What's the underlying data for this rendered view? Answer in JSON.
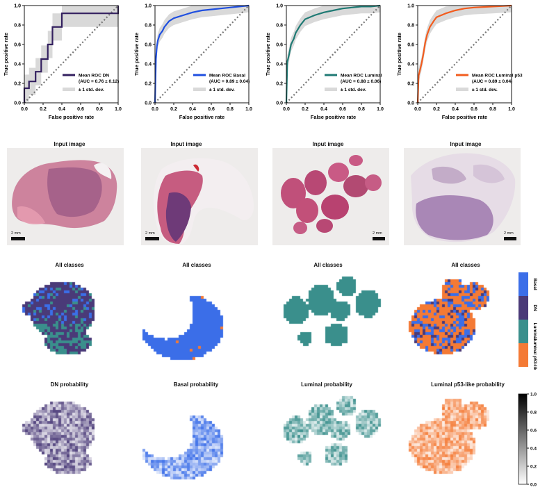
{
  "chart_data": [
    {
      "type": "line",
      "title": "",
      "xlabel": "False positive rate",
      "ylabel": "True positive rate",
      "xlim": [
        0,
        1
      ],
      "ylim": [
        0,
        1
      ],
      "xticks": [
        "0.0",
        "0.2",
        "0.4",
        "0.6",
        "0.8",
        "1.0"
      ],
      "yticks": [
        "0.0",
        "0.2",
        "0.4",
        "0.6",
        "0.8",
        "1.0"
      ],
      "legend_position": "bottom-right",
      "series": [
        {
          "name": "Mean ROC DN",
          "auc": "(AUC = 0.76 ± 0.12)",
          "color": "#33205f",
          "x": [
            0,
            0,
            0.05,
            0.05,
            0.12,
            0.12,
            0.18,
            0.18,
            0.25,
            0.25,
            0.3,
            0.3,
            0.4,
            0.4,
            1.0,
            1.0
          ],
          "y": [
            0,
            0.15,
            0.15,
            0.22,
            0.22,
            0.32,
            0.32,
            0.45,
            0.45,
            0.6,
            0.6,
            0.78,
            0.78,
            0.92,
            0.92,
            1.0
          ]
        },
        {
          "name": "± 1 std. dev.",
          "color": "#d9d9d9",
          "role": "band"
        }
      ]
    },
    {
      "type": "line",
      "title": "",
      "xlabel": "False positive rate",
      "ylabel": "True positive rate",
      "xlim": [
        0,
        1
      ],
      "ylim": [
        0,
        1
      ],
      "xticks": [
        "0.0",
        "0.2",
        "0.4",
        "0.6",
        "0.8",
        "1.0"
      ],
      "yticks": [
        "0.0",
        "0.2",
        "0.4",
        "0.6",
        "0.8",
        "1.0"
      ],
      "legend_position": "bottom-right",
      "series": [
        {
          "name": "Mean ROC Basal",
          "auc": "(AUC = 0.89 ± 0.04)",
          "color": "#1f4fe0",
          "x": [
            0,
            0.01,
            0.02,
            0.03,
            0.05,
            0.08,
            0.1,
            0.15,
            0.2,
            0.3,
            0.4,
            0.5,
            0.6,
            0.7,
            0.8,
            0.9,
            1.0
          ],
          "y": [
            0,
            0.45,
            0.58,
            0.64,
            0.7,
            0.74,
            0.78,
            0.84,
            0.87,
            0.9,
            0.93,
            0.95,
            0.96,
            0.97,
            0.98,
            0.99,
            1.0
          ]
        },
        {
          "name": "± 1 std. dev.",
          "color": "#d9d9d9",
          "role": "band"
        }
      ]
    },
    {
      "type": "line",
      "title": "",
      "xlabel": "False positive rate",
      "ylabel": "True positive rate",
      "xlim": [
        0,
        1
      ],
      "ylim": [
        0,
        1
      ],
      "xticks": [
        "0.0",
        "0.2",
        "0.4",
        "0.6",
        "0.8",
        "1.0"
      ],
      "yticks": [
        "0.0",
        "0.2",
        "0.4",
        "0.6",
        "0.8",
        "1.0"
      ],
      "legend_position": "bottom-right",
      "series": [
        {
          "name": "Mean ROC Luminal",
          "auc": "(AUC = 0.88 ± 0.06)",
          "color": "#1f7a74",
          "x": [
            0,
            0.01,
            0.03,
            0.05,
            0.08,
            0.1,
            0.15,
            0.2,
            0.3,
            0.4,
            0.5,
            0.6,
            0.7,
            0.8,
            0.9,
            1.0
          ],
          "y": [
            0,
            0.42,
            0.5,
            0.6,
            0.66,
            0.72,
            0.8,
            0.86,
            0.9,
            0.93,
            0.95,
            0.97,
            0.98,
            0.99,
            0.99,
            1.0
          ]
        },
        {
          "name": "± 1 std. dev.",
          "color": "#d9d9d9",
          "role": "band"
        }
      ]
    },
    {
      "type": "line",
      "title": "",
      "xlabel": "False positive rate",
      "ylabel": "True positive rate",
      "xlim": [
        0,
        1
      ],
      "ylim": [
        0,
        1
      ],
      "xticks": [
        "0.0",
        "0.2",
        "0.4",
        "0.6",
        "0.8",
        "1.0"
      ],
      "yticks": [
        "0.0",
        "0.2",
        "0.4",
        "0.6",
        "0.8",
        "1.0"
      ],
      "legend_position": "bottom-right",
      "series": [
        {
          "name": "Mean ROC Luminal p53",
          "auc": "(AUC = 0.89 ± 0.04)",
          "color": "#f25c1e",
          "x": [
            0,
            0.01,
            0.02,
            0.04,
            0.06,
            0.08,
            0.1,
            0.13,
            0.17,
            0.2,
            0.3,
            0.4,
            0.5,
            0.6,
            0.8,
            1.0
          ],
          "y": [
            0,
            0.28,
            0.32,
            0.4,
            0.5,
            0.62,
            0.7,
            0.78,
            0.84,
            0.88,
            0.92,
            0.95,
            0.97,
            0.98,
            0.99,
            1.0
          ]
        },
        {
          "name": "± 1 std. dev.",
          "color": "#d9d9d9",
          "role": "band"
        }
      ]
    }
  ],
  "input_images": {
    "title": "Input image",
    "scale_label": "2 mm"
  },
  "all_classes": {
    "title": "All classes",
    "legend": [
      "Basal",
      "DN",
      "Luminal",
      "Luminal p53-like"
    ],
    "colors": {
      "Basal": "#3b6ee8",
      "DN": "#4a3a78",
      "Luminal": "#3a8f8c",
      "Luminal p53-like": "#f47a35"
    }
  },
  "probability": {
    "titles": [
      "DN probability",
      "Basal probability",
      "Luminal probability",
      "Luminal p53-like probability"
    ],
    "colorbar_ticks": [
      "0.0",
      "0.2",
      "0.4",
      "0.6",
      "0.8",
      "1.0"
    ]
  }
}
